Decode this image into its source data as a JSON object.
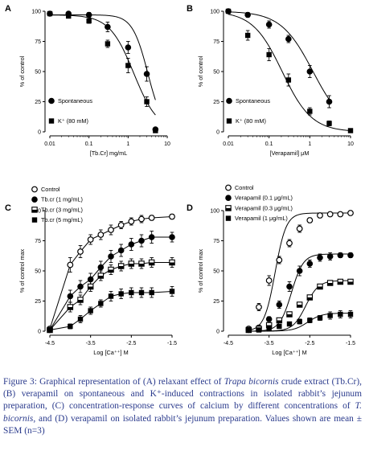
{
  "panels": [
    {
      "id": "A",
      "label": "A",
      "xlabel": "[Tb.Cr] mg/mL",
      "ylabel": "% of control",
      "scale": "log",
      "xlim": [
        0.01,
        10
      ],
      "ylim": [
        0,
        100
      ],
      "xticks": [
        {
          "v": 0.01,
          "t": "0.01"
        },
        {
          "v": 0.1,
          "t": "0.1"
        },
        {
          "v": 1,
          "t": "1"
        },
        {
          "v": 10,
          "t": "10"
        }
      ],
      "yticks": [
        0,
        25,
        50,
        75,
        100
      ],
      "legend_position": "bottom-left",
      "series": [
        {
          "name": "Spontaneous",
          "marker": "filled-circle",
          "x": [
            0.01,
            0.03,
            0.1,
            0.3,
            1,
            3,
            5
          ],
          "y": [
            98,
            98,
            97,
            87,
            70,
            48,
            2
          ],
          "err": [
            1,
            1,
            2,
            4,
            5,
            6,
            1
          ],
          "fit": {
            "ec50": 3.2,
            "hill": 2.2,
            "top": 97
          }
        },
        {
          "name": "K⁺ (80 mM)",
          "marker": "filled-square",
          "x": [
            0.01,
            0.03,
            0.1,
            0.3,
            1,
            3,
            5
          ],
          "y": [
            98,
            96,
            92,
            73,
            55,
            25,
            1
          ],
          "err": [
            1,
            1,
            2,
            3,
            6,
            4,
            1
          ],
          "fit": {
            "ec50": 1.4,
            "hill": 1.4,
            "top": 97
          }
        }
      ]
    },
    {
      "id": "B",
      "label": "B",
      "xlabel": "[Verapamil] μM",
      "ylabel": "% of control",
      "scale": "log",
      "xlim": [
        0.01,
        10
      ],
      "ylim": [
        0,
        100
      ],
      "xticks": [
        {
          "v": 0.01,
          "t": "0.01"
        },
        {
          "v": 0.1,
          "t": "0.1"
        },
        {
          "v": 1,
          "t": "1"
        },
        {
          "v": 10,
          "t": "10"
        }
      ],
      "yticks": [
        0,
        25,
        50,
        75,
        100
      ],
      "legend_position": "bottom-left",
      "series": [
        {
          "name": "Spontaneous",
          "marker": "filled-circle",
          "x": [
            0.01,
            0.03,
            0.1,
            0.3,
            1,
            3
          ],
          "y": [
            100,
            97,
            89,
            77,
            50,
            25
          ],
          "err": [
            1,
            2,
            3,
            3,
            5,
            5
          ],
          "fit": {
            "ec50": 1.2,
            "hill": 1.1,
            "top": 100
          }
        },
        {
          "name": "K⁺ (80 mM)",
          "marker": "filled-square",
          "x": [
            0.01,
            0.03,
            0.1,
            0.3,
            1,
            3,
            10
          ],
          "y": [
            100,
            80,
            64,
            43,
            17,
            7,
            1
          ],
          "err": [
            1,
            4,
            5,
            5,
            3,
            2,
            1
          ],
          "fit": {
            "ec50": 0.21,
            "hill": 1.2,
            "top": 100
          }
        }
      ]
    },
    {
      "id": "C",
      "label": "C",
      "xlabel": "Log [Ca⁺⁺] M",
      "ylabel": "% of control max",
      "scale": "linear",
      "xlim": [
        -4.5,
        -1.5
      ],
      "ylim": [
        0,
        100
      ],
      "xticks": [
        {
          "v": -4.5,
          "t": "-4.5"
        },
        {
          "v": -3.5,
          "t": "-3.5"
        },
        {
          "v": -2.5,
          "t": "-2.5"
        },
        {
          "v": -1.5,
          "t": "-1.5"
        }
      ],
      "yticks": [
        0,
        25,
        50,
        75,
        100
      ],
      "legend_position": "top-left",
      "series": [
        {
          "name": "Control",
          "marker": "open-circle",
          "x": [
            -4.5,
            -4,
            -3.75,
            -3.5,
            -3.25,
            -3,
            -2.75,
            -2.5,
            -2.25,
            -2,
            -1.5
          ],
          "y": [
            2,
            55,
            66,
            76,
            80,
            84,
            88,
            91,
            93,
            94,
            95
          ],
          "err": [
            1,
            6,
            5,
            4,
            4,
            4,
            3,
            3,
            3,
            2,
            2
          ],
          "fit": null
        },
        {
          "name": "Tb.cr (1 mg/mL)",
          "marker": "filled-circle",
          "x": [
            -4.5,
            -4,
            -3.75,
            -3.5,
            -3.25,
            -3,
            -2.75,
            -2.5,
            -2.25,
            -2,
            -1.5
          ],
          "y": [
            1,
            29,
            37,
            43,
            53,
            62,
            67,
            72,
            75,
            78,
            78
          ],
          "err": [
            1,
            5,
            5,
            5,
            5,
            5,
            5,
            5,
            5,
            5,
            4
          ],
          "fit": null
        },
        {
          "name": "Tb.cr (3 mg/mL)",
          "marker": "half-square",
          "x": [
            -4.5,
            -4,
            -3.75,
            -3.5,
            -3.25,
            -3,
            -2.75,
            -2.5,
            -2.25,
            -2,
            -1.5
          ],
          "y": [
            1,
            20,
            26,
            37,
            46,
            51,
            54,
            56,
            56,
            57,
            57
          ],
          "err": [
            1,
            4,
            4,
            4,
            4,
            4,
            4,
            4,
            4,
            4,
            4
          ],
          "fit": null
        },
        {
          "name": "Tb.cr (5 mg/mL)",
          "marker": "filled-square",
          "x": [
            -4.5,
            -4,
            -3.75,
            -3.5,
            -3.25,
            -3,
            -2.75,
            -2.5,
            -2.25,
            -2,
            -1.5
          ],
          "y": [
            1,
            4,
            10,
            17,
            23,
            29,
            31,
            32,
            32,
            32,
            33
          ],
          "err": [
            1,
            2,
            3,
            3,
            3,
            4,
            4,
            4,
            4,
            4,
            4
          ],
          "fit": null
        }
      ]
    },
    {
      "id": "D",
      "label": "D",
      "xlabel": "Log [Ca⁺⁺] M",
      "ylabel": "% of control max",
      "scale": "linear",
      "xlim": [
        -4.5,
        -1.5
      ],
      "ylim": [
        0,
        100
      ],
      "xticks": [
        {
          "v": -4.5,
          "t": "-4.5"
        },
        {
          "v": -3.5,
          "t": "-3.5"
        },
        {
          "v": -2.5,
          "t": "-2.5"
        },
        {
          "v": -1.5,
          "t": "-1.5"
        }
      ],
      "yticks": [
        0,
        25,
        50,
        75,
        100
      ],
      "legend_position": "top-left",
      "series": [
        {
          "name": "Control",
          "marker": "open-circle",
          "x": [
            -4,
            -3.75,
            -3.5,
            -3.25,
            -3,
            -2.75,
            -2.5,
            -2.25,
            -2,
            -1.75,
            -1.5
          ],
          "y": [
            2,
            20,
            42,
            59,
            73,
            85,
            92,
            96,
            97,
            97,
            98
          ],
          "err": [
            1,
            3,
            4,
            3,
            3,
            3,
            2,
            2,
            1,
            1,
            1
          ],
          "fit": {
            "ec50": -3.35,
            "hill": 1.4,
            "top": 98
          }
        },
        {
          "name": "Verapamil (0.1 μg/mL)",
          "marker": "filled-circle",
          "x": [
            -4,
            -3.75,
            -3.5,
            -3.25,
            -3,
            -2.75,
            -2.5,
            -2.25,
            -2,
            -1.75,
            -1.5
          ],
          "y": [
            1,
            3,
            10,
            22,
            37,
            50,
            56,
            61,
            62,
            63,
            63
          ],
          "err": [
            1,
            1,
            2,
            3,
            4,
            4,
            3,
            3,
            3,
            2,
            2
          ],
          "fit": {
            "ec50": -2.95,
            "hill": 1.3,
            "top": 64
          }
        },
        {
          "name": "Verapamil (0.3 μg/mL)",
          "marker": "half-square",
          "x": [
            -4,
            -3.75,
            -3.5,
            -3.25,
            -3,
            -2.75,
            -2.5,
            -2.25,
            -2,
            -1.75,
            -1.5
          ],
          "y": [
            1,
            2,
            5,
            9,
            14,
            22,
            28,
            37,
            40,
            41,
            41
          ],
          "err": [
            1,
            1,
            1,
            2,
            2,
            2,
            2,
            2,
            2,
            2,
            2
          ],
          "fit": {
            "ec50": -2.6,
            "hill": 1.2,
            "top": 42
          }
        },
        {
          "name": "Verapamil (1 μg/mL)",
          "marker": "filled-square",
          "x": [
            -4,
            -3.75,
            -3.5,
            -3.25,
            -3,
            -2.75,
            -2.5,
            -2.25,
            -2,
            -1.75,
            -1.5
          ],
          "y": [
            1,
            1,
            2,
            4,
            6,
            8,
            9,
            11,
            13,
            14,
            14
          ],
          "err": [
            1,
            1,
            1,
            1,
            1,
            2,
            2,
            2,
            3,
            3,
            3
          ],
          "fit": {
            "ec50": -2.55,
            "hill": 1.1,
            "top": 15
          }
        }
      ]
    }
  ],
  "caption": {
    "p1": "Figure 3: Graphical representation of (A) relaxant effect of ",
    "it1": "Trapa bicornis",
    "p2": " crude extract (Tb.Cr), (B) verapamil on spontaneous and K⁺-induced contractions in isolated rabbit’s jejunum preparation, (C) concentration-response curves of calcium by different concentrations of ",
    "it2": "T. bicornis",
    "p3": ", and (D) verapamil on isolated rabbit’s jejunum preparation. Values shown are mean ± SEM (n=3)"
  },
  "chart_data": [
    {
      "type": "scatter",
      "panel": "A",
      "xlabel": "[Tb.Cr] mg/mL",
      "ylabel": "% of control",
      "xscale": "log",
      "xlim": [
        0.01,
        10
      ],
      "ylim": [
        0,
        100
      ],
      "series": [
        {
          "name": "Spontaneous",
          "x": [
            0.01,
            0.03,
            0.1,
            0.3,
            1,
            3,
            5
          ],
          "y": [
            98,
            98,
            97,
            87,
            70,
            48,
            2
          ]
        },
        {
          "name": "K⁺ (80 mM)",
          "x": [
            0.01,
            0.03,
            0.1,
            0.3,
            1,
            3,
            5
          ],
          "y": [
            98,
            96,
            92,
            73,
            55,
            25,
            1
          ]
        }
      ]
    },
    {
      "type": "scatter",
      "panel": "B",
      "xlabel": "[Verapamil] μM",
      "ylabel": "% of control",
      "xscale": "log",
      "xlim": [
        0.01,
        10
      ],
      "ylim": [
        0,
        100
      ],
      "series": [
        {
          "name": "Spontaneous",
          "x": [
            0.01,
            0.03,
            0.1,
            0.3,
            1,
            3
          ],
          "y": [
            100,
            97,
            89,
            77,
            50,
            25
          ]
        },
        {
          "name": "K⁺ (80 mM)",
          "x": [
            0.01,
            0.03,
            0.1,
            0.3,
            1,
            3,
            10
          ],
          "y": [
            100,
            80,
            64,
            43,
            17,
            7,
            1
          ]
        }
      ]
    },
    {
      "type": "line",
      "panel": "C",
      "xlabel": "Log [Ca⁺⁺] M",
      "ylabel": "% of control max",
      "xlim": [
        -4.5,
        -1.5
      ],
      "ylim": [
        0,
        100
      ],
      "series": [
        {
          "name": "Control",
          "x": [
            -4.5,
            -4,
            -3.75,
            -3.5,
            -3.25,
            -3,
            -2.75,
            -2.5,
            -2.25,
            -2,
            -1.5
          ],
          "y": [
            2,
            55,
            66,
            76,
            80,
            84,
            88,
            91,
            93,
            94,
            95
          ]
        },
        {
          "name": "Tb.cr (1 mg/mL)",
          "x": [
            -4.5,
            -4,
            -3.75,
            -3.5,
            -3.25,
            -3,
            -2.75,
            -2.5,
            -2.25,
            -2,
            -1.5
          ],
          "y": [
            1,
            29,
            37,
            43,
            53,
            62,
            67,
            72,
            75,
            78,
            78
          ]
        },
        {
          "name": "Tb.cr (3 mg/mL)",
          "x": [
            -4.5,
            -4,
            -3.75,
            -3.5,
            -3.25,
            -3,
            -2.75,
            -2.5,
            -2.25,
            -2,
            -1.5
          ],
          "y": [
            1,
            20,
            26,
            37,
            46,
            51,
            54,
            56,
            56,
            57,
            57
          ]
        },
        {
          "name": "Tb.cr (5 mg/mL)",
          "x": [
            -4.5,
            -4,
            -3.75,
            -3.5,
            -3.25,
            -3,
            -2.75,
            -2.5,
            -2.25,
            -2,
            -1.5
          ],
          "y": [
            1,
            4,
            10,
            17,
            23,
            29,
            31,
            32,
            32,
            32,
            33
          ]
        }
      ]
    },
    {
      "type": "scatter",
      "panel": "D",
      "xlabel": "Log [Ca⁺⁺] M",
      "ylabel": "% of control max",
      "xlim": [
        -4.5,
        -1.5
      ],
      "ylim": [
        0,
        100
      ],
      "series": [
        {
          "name": "Control",
          "x": [
            -4,
            -3.75,
            -3.5,
            -3.25,
            -3,
            -2.75,
            -2.5,
            -2.25,
            -2,
            -1.75,
            -1.5
          ],
          "y": [
            2,
            20,
            42,
            59,
            73,
            85,
            92,
            96,
            97,
            97,
            98
          ]
        },
        {
          "name": "Verapamil (0.1 μg/mL)",
          "x": [
            -4,
            -3.75,
            -3.5,
            -3.25,
            -3,
            -2.75,
            -2.5,
            -2.25,
            -2,
            -1.75,
            -1.5
          ],
          "y": [
            1,
            3,
            10,
            22,
            37,
            50,
            56,
            61,
            62,
            63,
            63
          ]
        },
        {
          "name": "Verapamil (0.3 μg/mL)",
          "x": [
            -4,
            -3.75,
            -3.5,
            -3.25,
            -3,
            -2.75,
            -2.5,
            -2.25,
            -2,
            -1.75,
            -1.5
          ],
          "y": [
            1,
            2,
            5,
            9,
            14,
            22,
            28,
            37,
            40,
            41,
            41
          ]
        },
        {
          "name": "Verapamil (1 μg/mL)",
          "x": [
            -4,
            -3.75,
            -3.5,
            -3.25,
            -3,
            -2.75,
            -2.5,
            -2.25,
            -2,
            -1.75,
            -1.5
          ],
          "y": [
            1,
            1,
            2,
            4,
            6,
            8,
            9,
            11,
            13,
            14,
            14
          ]
        }
      ]
    }
  ]
}
